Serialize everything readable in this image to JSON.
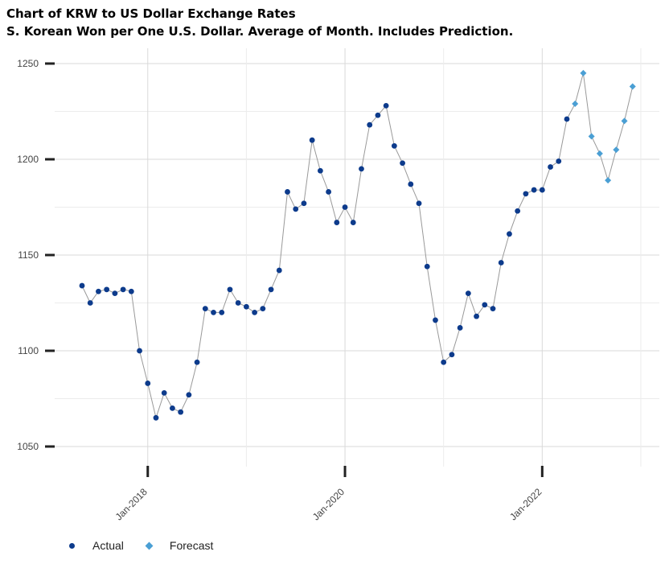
{
  "title_line1": "Chart of KRW to US Dollar Exchange Rates",
  "title_line2": "S. Korean Won per One U.S. Dollar.  Average of Month.  Includes Prediction.",
  "colors": {
    "actual": "#0d3b8c",
    "forecast": "#4a9fd4",
    "line": "#999999",
    "grid": "#d9d9d9"
  },
  "chart_data": {
    "type": "line",
    "ylim": [
      1045,
      1255
    ],
    "yticks": [
      1050,
      1100,
      1150,
      1200,
      1250
    ],
    "x_tick_labels": [
      "Jan-2018",
      "Jan-2020",
      "Jan-2022"
    ],
    "x_start_month": "2017-05",
    "legend_position": "bottom-left",
    "grid": true,
    "series": [
      {
        "name": "Actual",
        "marker": "circle",
        "values": [
          1134,
          1125,
          1131,
          1132,
          1130,
          1132,
          1131,
          1100,
          1083,
          1065,
          1078,
          1070,
          1068,
          1077,
          1094,
          1122,
          1120,
          1120,
          1132,
          1125,
          1123,
          1120,
          1122,
          1132,
          1142,
          1183,
          1174,
          1177,
          1210,
          1194,
          1183,
          1167,
          1175,
          1167,
          1195,
          1218,
          1223,
          1228,
          1207,
          1198,
          1187,
          1177,
          1144,
          1116,
          1094,
          1098,
          1112,
          1130,
          1118,
          1124,
          1122,
          1146,
          1161,
          1173,
          1182,
          1184,
          1184,
          1196,
          1199,
          1221
        ]
      },
      {
        "name": "Forecast",
        "marker": "diamond",
        "values": [
          1229,
          1245,
          1212,
          1203,
          1189,
          1205,
          1220,
          1238
        ]
      }
    ]
  }
}
